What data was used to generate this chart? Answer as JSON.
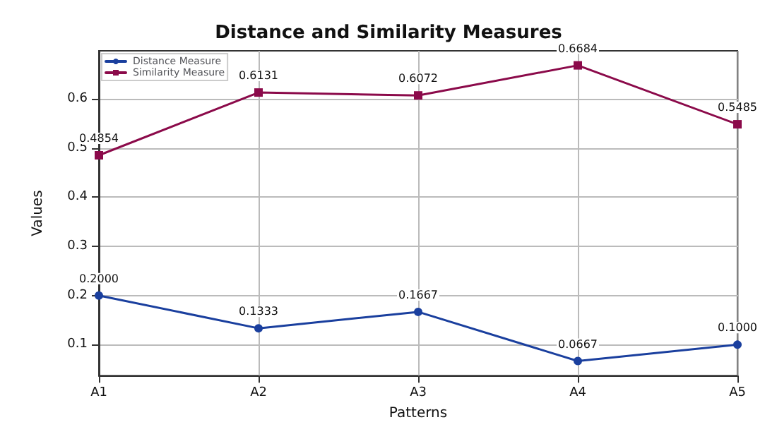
{
  "chart_data": {
    "type": "line",
    "title": "Distance and Similarity Measures",
    "xlabel": "Patterns",
    "ylabel": "Values",
    "categories": [
      "A1",
      "A2",
      "A3",
      "A4",
      "A5"
    ],
    "series": [
      {
        "name": "Distance Measure",
        "color": "#1a3f9e",
        "marker": "circle",
        "values": [
          0.2,
          0.1333,
          0.1667,
          0.0667,
          0.1
        ],
        "value_labels": [
          "0.2000",
          "0.1333",
          "0.1667",
          "0.0667",
          "0.1000"
        ]
      },
      {
        "name": "Similarity Measure",
        "color": "#8b0a4a",
        "marker": "square",
        "values": [
          0.4854,
          0.6131,
          0.6072,
          0.6684,
          0.5485
        ],
        "value_labels": [
          "0.4854",
          "0.6131",
          "0.6072",
          "0.6684",
          "0.5485"
        ]
      }
    ],
    "ylim": [
      0.037,
      0.698
    ],
    "yticks": [
      0.1,
      0.2,
      0.3,
      0.4,
      0.5,
      0.6
    ],
    "grid": true,
    "legend": "top left",
    "line_style": "solid"
  }
}
